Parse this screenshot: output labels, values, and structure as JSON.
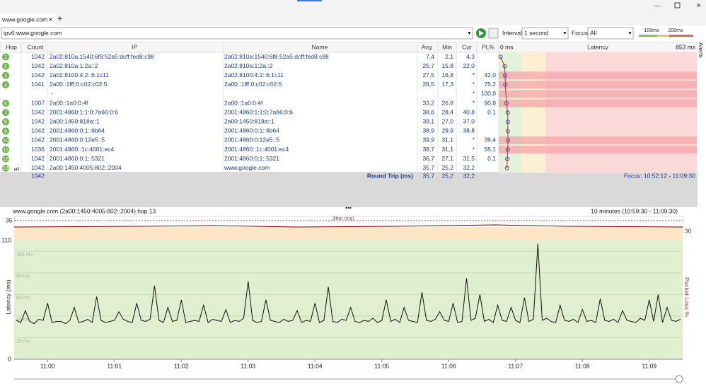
{
  "tab": {
    "title": "www.google.com"
  },
  "toolbar": {
    "target": "ipv6:www.google.com",
    "interval_label": "Interval",
    "interval": "1 second",
    "focus_label": "Focus",
    "focus": "All",
    "thresholds": [
      {
        "value": 100,
        "label": "100ms"
      },
      {
        "value": 200,
        "label": "200ms"
      }
    ],
    "alerts": "Alerts"
  },
  "table": {
    "headers": {
      "hop": "Hop",
      "count": "Count",
      "ip": "IP",
      "name": "Name",
      "avg": "Avg",
      "min": "Min",
      "cur": "Cur",
      "pl": "PL%",
      "latency": "Latency"
    },
    "latency_scale": [
      {
        "value": 0,
        "label": "0 ms"
      },
      {
        "value": 853,
        "label": "853 ms"
      }
    ],
    "rows": [
      {
        "hop": "1",
        "count": "1042",
        "ip": "2a02:810a:1540:6f8:52a5:dcff:fed8:c98",
        "name": "2a02:810a:1540:6f8:52a5:dcff:fed8:c98",
        "avg": "7,4",
        "min": "2,1",
        "cur": "4,3"
      },
      {
        "hop": "2",
        "count": "1042",
        "ip": "2a02:810a:1:2a::2",
        "name": "2a02:810a:1:2a::2",
        "avg": "25,7",
        "min": "15,8",
        "cur": "22,0"
      },
      {
        "hop": "3",
        "count": "1042",
        "ip": "2a02:8100:4:2::6:1c11",
        "name": "2a02:8100:4:2::6:1c11",
        "avg": "27,5",
        "min": "16,8",
        "cur": "*",
        "pl": "42,0"
      },
      {
        "hop": "4",
        "count": "1041",
        "ip": "2a00::1fff:0:c02:c02:5",
        "name": "2a00::1fff:0:c02:c02:5",
        "avg": "28,5",
        "min": "17,3",
        "cur": "*",
        "pl": "75,2"
      },
      {
        "ip": "-",
        "cur": "*",
        "pl": "100,0"
      },
      {
        "hop": "6",
        "count": "1007",
        "ip": "2a00::1a0:0:4f",
        "name": "2a00::1a0:0:4f",
        "avg": "33,2",
        "min": "26,8",
        "cur": "*",
        "pl": "90,8"
      },
      {
        "hop": "7",
        "count": "1042",
        "ip": "2001:4860:1:1:0:7a66:0:6",
        "name": "2001:4860:1:1:0:7a66:0:6",
        "avg": "38,6",
        "min": "28,4",
        "cur": "40,8",
        "pl": "0,1"
      },
      {
        "hop": "8",
        "count": "1042",
        "ip": "2a00:1450:818a::1",
        "name": "2a00:1450:818a::1",
        "avg": "39,1",
        "min": "27,0",
        "cur": "37,0"
      },
      {
        "hop": "9",
        "count": "1042",
        "ip": "2001:4860:0:1::6b64",
        "name": "2001:4860:0:1::6b64",
        "avg": "38,9",
        "min": "29,9",
        "cur": "38,8"
      },
      {
        "hop": "10",
        "count": "1042",
        "ip": "2001:4860:0:12e5::5",
        "name": "2001:4860:0:12e5::5",
        "avg": "39,9",
        "min": "31,1",
        "cur": "*",
        "pl": "39,4"
      },
      {
        "hop": "11",
        "count": "1036",
        "ip": "2001:4860::1c:4001:ec4",
        "name": "2001:4860::1c:4001:ec4",
        "avg": "38,7",
        "min": "31,1",
        "cur": "*",
        "pl": "55,1"
      },
      {
        "hop": "12",
        "count": "1042",
        "ip": "2001:4860:0:1::5321",
        "name": "2001:4860:0:1::5321",
        "avg": "36,7",
        "min": "27,1",
        "cur": "31,5",
        "pl": "0,1"
      },
      {
        "hop": "13",
        "count": "1042",
        "ip": "2a00:1450:4005:802::2004",
        "name": "www.google.com",
        "avg": "35,7",
        "min": "25,2",
        "cur": "32,2"
      }
    ],
    "footer": {
      "count": "1042",
      "label": "Round Trip (ms)",
      "avg": "35,7",
      "min": "25,2",
      "cur": "32,2",
      "focus": "Focus: 10:52:12 - 11:09:30"
    }
  },
  "graph": {
    "title": "www.google.com (2a00:1450:4005:802::2004) hop 13",
    "range": "10 minutes (10:59:30 - 11:09:30)",
    "jitter_label": "Jitter (ms)",
    "jitter_axis": "35",
    "loss_axis": "30",
    "y_label": "Latency (ms)",
    "y2_label": "Packet Loss %",
    "ylim": [
      0,
      110
    ],
    "yticks": [
      0,
      110
    ],
    "gridlines": [
      {
        "value": 20,
        "label": "20 ms"
      },
      {
        "value": 40,
        "label": "40 ms"
      },
      {
        "value": 60,
        "label": "60 ms"
      },
      {
        "value": 80,
        "label": "80 ms"
      },
      {
        "value": 100,
        "label": "100 ms"
      }
    ],
    "xticks": [
      "11:00",
      "11:01",
      "11:02",
      "11:03",
      "11:04",
      "11:05",
      "11:06",
      "11:07",
      "11:08",
      "11:09"
    ],
    "latency": [
      36,
      34,
      45,
      35,
      33,
      37,
      36,
      52,
      34,
      35,
      35,
      33,
      36,
      48,
      34,
      35,
      37,
      34,
      58,
      36,
      34,
      35,
      36,
      44,
      37,
      35,
      34,
      52,
      36,
      35,
      37,
      68,
      36,
      34,
      48,
      35,
      36,
      55,
      34,
      35,
      36,
      35,
      50,
      34,
      37,
      36,
      35,
      46,
      34,
      36,
      35,
      38,
      72,
      36,
      34,
      35,
      55,
      36,
      35,
      34,
      37,
      35,
      36,
      45,
      34,
      36,
      35,
      52,
      34,
      36,
      67,
      35,
      34,
      37,
      36,
      48,
      35,
      34,
      36,
      35,
      38,
      34,
      36,
      55,
      35,
      37,
      34,
      48,
      36,
      35,
      34,
      62,
      36,
      35,
      37,
      44,
      36,
      35,
      52,
      34,
      35,
      75,
      36,
      38,
      60,
      35,
      37,
      34,
      50,
      36,
      35,
      48,
      36,
      34,
      57,
      35,
      37,
      107,
      36,
      38,
      35,
      34,
      50,
      36,
      35,
      37,
      34,
      46,
      35,
      36,
      34,
      56,
      36,
      35,
      37,
      34,
      45,
      36,
      35,
      34,
      38,
      36,
      55,
      35,
      60,
      34,
      48,
      36,
      35,
      37
    ]
  }
}
